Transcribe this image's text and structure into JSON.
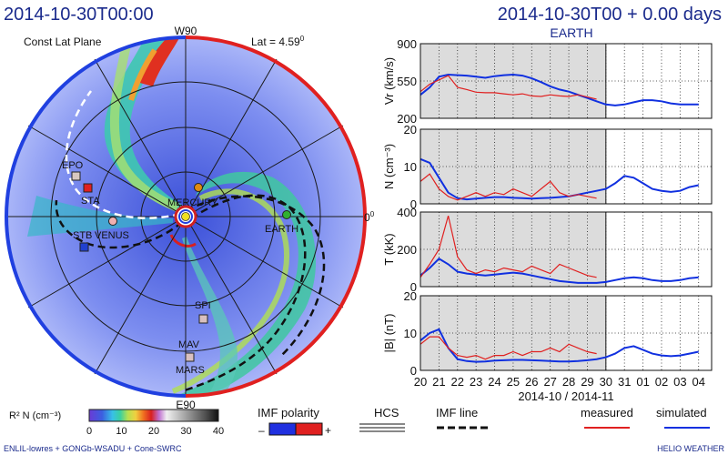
{
  "header": {
    "left_timestamp": "2014-10-30T00:00",
    "right_title": "2014-10-30T00 + 0.00 days",
    "panel_target": "EARTH"
  },
  "map": {
    "subtitle": "Const Lat Plane",
    "lat_label": "Lat = 4.59",
    "lat_unit": "0",
    "label_top": "W90",
    "label_bottom": "E90",
    "label_right": "0",
    "label_right_sup": "0",
    "objects": [
      {
        "name": "EPO",
        "color": "#d8c8c0"
      },
      {
        "name": "STA",
        "color": "#e02020"
      },
      {
        "name": "STB",
        "color": "#2040d0"
      },
      {
        "name": "VENUS",
        "color": "#f0b0b0"
      },
      {
        "name": "MERCURY",
        "color": "#e08a10"
      },
      {
        "name": "EARTH",
        "color": "#30b030"
      },
      {
        "name": "SPI",
        "color": "#d8c0c0"
      },
      {
        "name": "MAV",
        "color": "#d8c0c0"
      },
      {
        "name": "MARS",
        "color": "#e0c0b0"
      }
    ]
  },
  "legend": {
    "density_label": "R² N  (cm⁻³)",
    "density_ticks": [
      "0",
      "10",
      "20",
      "30",
      "40"
    ],
    "imf_polarity_title": "IMF polarity",
    "imf_minus": "–",
    "imf_plus": "+",
    "hcs_title": "HCS",
    "imf_line_title": "IMF line",
    "measured_label": "measured",
    "simulated_label": "simulated",
    "measured_color": "#e02020",
    "simulated_color": "#1030e0"
  },
  "footer": {
    "left_credit": "ENLIL-lowres + GONGb-WSADU + Cone-SWRC",
    "right_credit": "HELIO  WEATHER"
  },
  "chart_data": [
    {
      "type": "line",
      "title": "EARTH",
      "ylabel": "Vr (km/s)",
      "ylim": [
        200,
        900
      ],
      "yticks": [
        "900",
        "550",
        "200"
      ],
      "x": [
        20,
        20.5,
        21,
        21.5,
        22,
        22.5,
        23,
        23.5,
        24,
        24.5,
        25,
        25.5,
        26,
        26.5,
        27,
        27.5,
        28,
        28.5,
        29,
        29.5,
        30,
        30.5,
        31,
        31.5,
        32,
        32.5,
        33,
        33.5,
        34,
        34.5,
        35
      ],
      "series": [
        {
          "name": "simulated",
          "values": [
            420,
            490,
            590,
            610,
            605,
            600,
            590,
            580,
            595,
            605,
            610,
            600,
            575,
            540,
            500,
            470,
            450,
            420,
            390,
            360,
            330,
            320,
            330,
            350,
            370,
            370,
            360,
            340,
            330,
            330,
            330
          ]
        },
        {
          "name": "measured",
          "values": [
            450,
            520,
            560,
            600,
            490,
            470,
            445,
            440,
            440,
            430,
            420,
            430,
            410,
            405,
            420,
            410,
            405,
            420,
            400,
            380,
            null,
            null,
            null,
            null,
            null,
            null,
            null,
            null,
            null,
            null,
            null
          ]
        }
      ]
    },
    {
      "type": "line",
      "ylabel": "N (cm⁻³)",
      "ylim": [
        0,
        20
      ],
      "yticks": [
        "20",
        "10",
        "0"
      ],
      "x": [
        20,
        20.5,
        21,
        21.5,
        22,
        22.5,
        23,
        23.5,
        24,
        24.5,
        25,
        25.5,
        26,
        26.5,
        27,
        27.5,
        28,
        28.5,
        29,
        29.5,
        30,
        30.5,
        31,
        31.5,
        32,
        32.5,
        33,
        33.5,
        34,
        34.5,
        35
      ],
      "series": [
        {
          "name": "simulated",
          "values": [
            12,
            11,
            7,
            3,
            1.5,
            1.2,
            1.4,
            1.6,
            1.8,
            1.8,
            1.6,
            1.5,
            1.4,
            1.5,
            1.6,
            1.8,
            2,
            2.5,
            3,
            3.5,
            4,
            5.5,
            7.5,
            7,
            5.5,
            4,
            3.5,
            3.2,
            3.5,
            4.5,
            5
          ]
        },
        {
          "name": "measured",
          "values": [
            6,
            8,
            4,
            2,
            1,
            2,
            3,
            2,
            3,
            2.5,
            4,
            3,
            2,
            4,
            6,
            3,
            2,
            2.5,
            2,
            1.5,
            null,
            null,
            null,
            null,
            null,
            null,
            null,
            null,
            null,
            null,
            null
          ]
        }
      ]
    },
    {
      "type": "line",
      "ylabel": "T (kK)",
      "ylim": [
        0,
        400
      ],
      "yticks": [
        "400",
        "200",
        "0"
      ],
      "x": [
        20,
        20.5,
        21,
        21.5,
        22,
        22.5,
        23,
        23.5,
        24,
        24.5,
        25,
        25.5,
        26,
        26.5,
        27,
        27.5,
        28,
        28.5,
        29,
        29.5,
        30,
        30.5,
        31,
        31.5,
        32,
        32.5,
        33,
        33.5,
        34,
        34.5,
        35
      ],
      "series": [
        {
          "name": "simulated",
          "values": [
            60,
            100,
            150,
            120,
            80,
            70,
            65,
            60,
            65,
            70,
            75,
            70,
            60,
            50,
            40,
            30,
            25,
            20,
            20,
            20,
            25,
            35,
            45,
            50,
            45,
            35,
            30,
            30,
            35,
            45,
            50
          ]
        },
        {
          "name": "measured",
          "values": [
            50,
            120,
            200,
            380,
            160,
            90,
            70,
            90,
            80,
            100,
            90,
            80,
            110,
            90,
            70,
            120,
            100,
            80,
            60,
            50,
            null,
            null,
            null,
            null,
            null,
            null,
            null,
            null,
            null,
            null,
            null
          ]
        }
      ]
    },
    {
      "type": "line",
      "ylabel": "|B| (nT)",
      "xlabel": "2014-10 / 2014-11",
      "ylim": [
        0,
        20
      ],
      "yticks": [
        "20",
        "10",
        "0"
      ],
      "xticks": [
        "20",
        "21",
        "22",
        "23",
        "24",
        "25",
        "26",
        "27",
        "28",
        "29",
        "30",
        "31",
        "01",
        "02",
        "03",
        "04"
      ],
      "x": [
        20,
        20.5,
        21,
        21.5,
        22,
        22.5,
        23,
        23.5,
        24,
        24.5,
        25,
        25.5,
        26,
        26.5,
        27,
        27.5,
        28,
        28.5,
        29,
        29.5,
        30,
        30.5,
        31,
        31.5,
        32,
        32.5,
        33,
        33.5,
        34,
        34.5,
        35
      ],
      "series": [
        {
          "name": "simulated",
          "values": [
            8,
            10,
            11,
            6,
            3,
            2.5,
            2.3,
            2.4,
            2.6,
            2.7,
            2.8,
            2.8,
            2.7,
            2.6,
            2.5,
            2.4,
            2.4,
            2.5,
            2.7,
            3,
            3.5,
            4.5,
            6,
            6.5,
            5.5,
            4.5,
            4,
            3.8,
            4,
            4.5,
            5
          ]
        },
        {
          "name": "measured",
          "values": [
            7,
            9,
            9,
            6,
            4,
            3.5,
            4,
            3,
            4,
            4,
            5,
            4,
            5,
            5,
            6,
            5,
            7,
            6,
            5,
            4.5,
            null,
            null,
            null,
            null,
            null,
            null,
            null,
            null,
            null,
            null,
            null
          ]
        }
      ]
    }
  ]
}
